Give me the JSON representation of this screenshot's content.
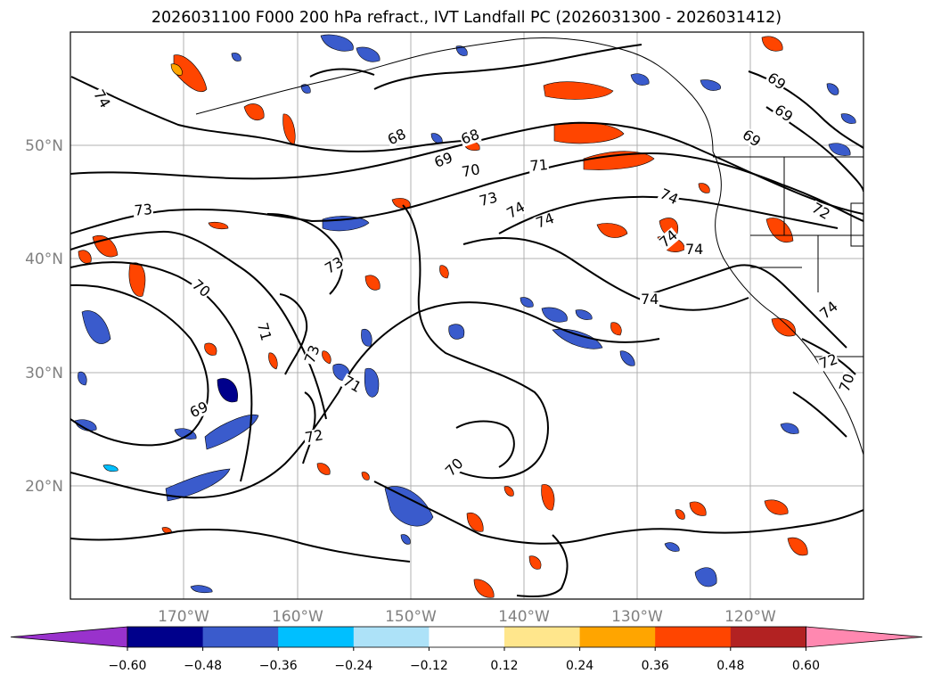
{
  "title": "2026031100 F000 200 hPa refract., IVT Landfall PC (2026031300 - 2026031412)",
  "lat_labels": [
    "50°N",
    "40°N",
    "30°N",
    "20°N"
  ],
  "lon_labels": [
    "170°W",
    "160°W",
    "150°W",
    "140°W",
    "130°W",
    "120°W"
  ],
  "contour_labels": [
    "74",
    "68",
    "68",
    "69",
    "70",
    "71",
    "73",
    "74",
    "74",
    "74",
    "74",
    "74",
    "73",
    "73",
    "70",
    "71",
    "73",
    "71",
    "69",
    "72",
    "70",
    "69",
    "69",
    "69",
    "72",
    "74",
    "72",
    "70"
  ],
  "colorbar": {
    "ticks": [
      "−0.60",
      "−0.48",
      "−0.36",
      "−0.24",
      "−0.12",
      "0.12",
      "0.24",
      "0.36",
      "0.48",
      "0.60"
    ],
    "colors": [
      "#9932cc",
      "#00008b",
      "#3a5bcc",
      "#00bfff",
      "#ade2f8",
      "#ffffff",
      "#ffe68c",
      "#ffa500",
      "#ff4500",
      "#b22222",
      "#ff88b0"
    ]
  },
  "colors": {
    "grid": "#b0b0b0",
    "contour": "#000000",
    "tick_label": "#808080"
  }
}
